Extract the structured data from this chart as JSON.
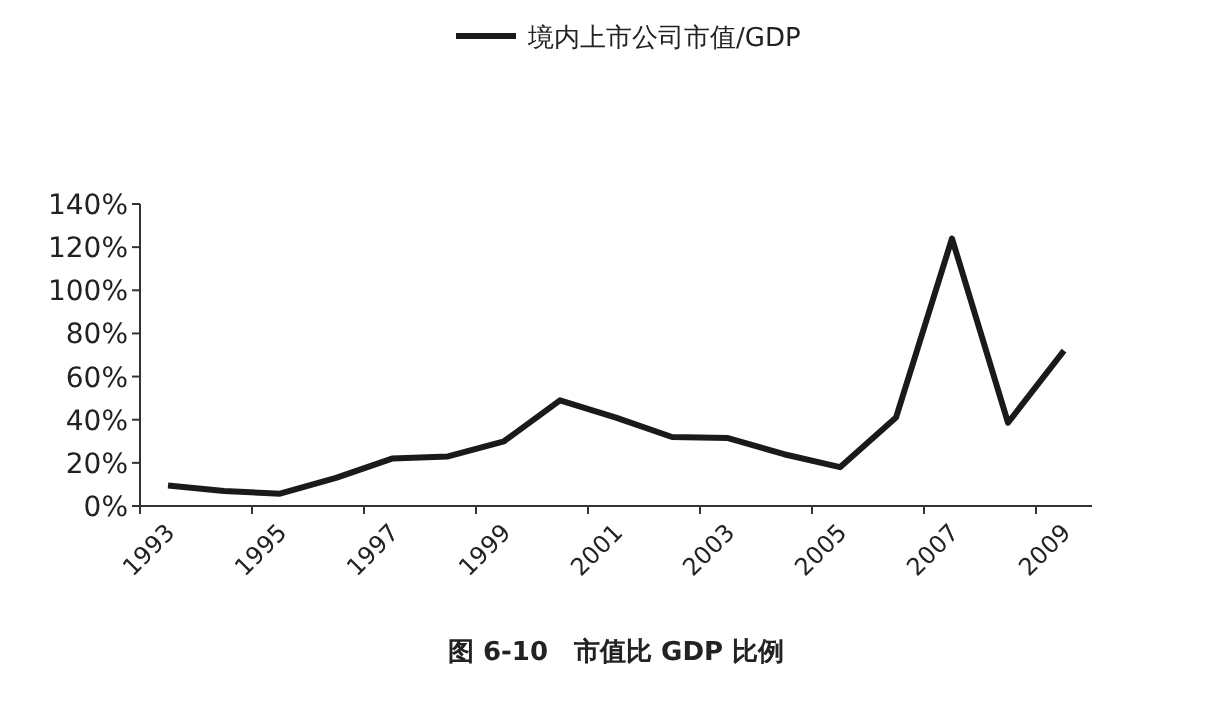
{
  "chart_data": {
    "type": "line",
    "categories": [
      "1993",
      null,
      "1995",
      null,
      "1997",
      null,
      "1999",
      null,
      "2001",
      null,
      "2003",
      null,
      "2005",
      null,
      "2007",
      null,
      "2009"
    ],
    "series": [
      {
        "name": "境内上市公司市值/GDP",
        "color": "#1a1a1a",
        "values": [
          9.5,
          7,
          5.7,
          13,
          22,
          23,
          30,
          49,
          41,
          32,
          31.5,
          24,
          18,
          41,
          124,
          38.6,
          72
        ]
      }
    ],
    "ylim": [
      0,
      140
    ],
    "yticks": [
      {
        "value": 0,
        "label": "0%"
      },
      {
        "value": 20,
        "label": "20%"
      },
      {
        "value": 40,
        "label": "40%"
      },
      {
        "value": 60,
        "label": "60%"
      },
      {
        "value": 80,
        "label": "80%"
      },
      {
        "value": 100,
        "label": "100%"
      },
      {
        "value": 120,
        "label": "120%"
      },
      {
        "value": 140,
        "label": "140%"
      }
    ],
    "legend": "top",
    "marker": "none",
    "line_style": "solid",
    "annotations": [
      "图 6-10　市值比 GDP 比例"
    ]
  }
}
